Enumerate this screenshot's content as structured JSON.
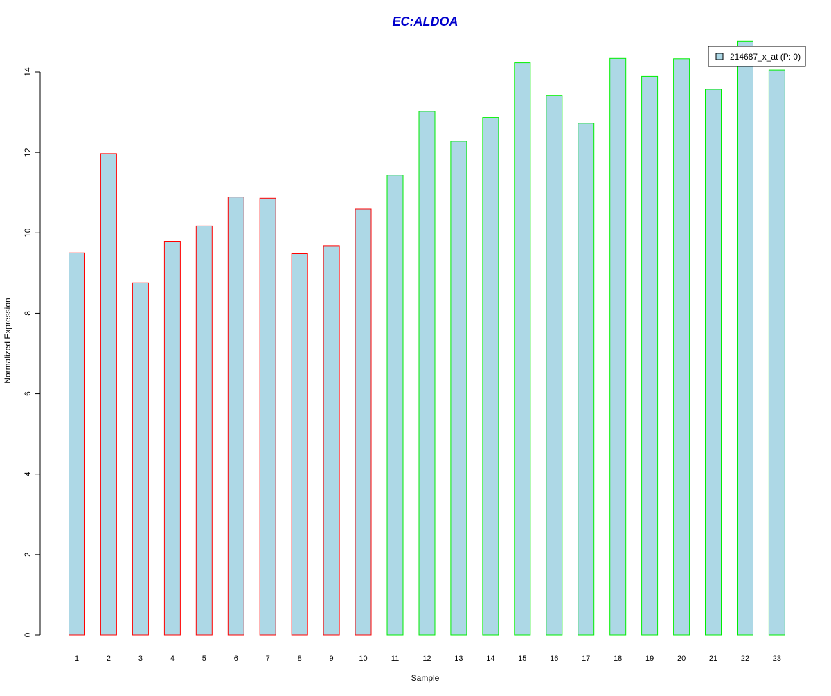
{
  "chart_data": {
    "type": "bar",
    "title": "EC:ALDOA",
    "xlabel": "Sample",
    "ylabel": "Normalized Expression",
    "categories": [
      "1",
      "2",
      "3",
      "4",
      "5",
      "6",
      "7",
      "8",
      "9",
      "10",
      "11",
      "12",
      "13",
      "14",
      "15",
      "16",
      "17",
      "18",
      "19",
      "20",
      "21",
      "22",
      "23"
    ],
    "series": [
      {
        "name": "214687_x_at (P: 0)",
        "values": [
          9.5,
          11.97,
          8.76,
          9.79,
          10.17,
          10.89,
          10.86,
          9.48,
          9.68,
          10.59,
          11.44,
          13.02,
          12.28,
          12.87,
          14.23,
          13.42,
          12.73,
          14.34,
          13.89,
          14.33,
          13.57,
          14.77,
          14.05
        ]
      }
    ],
    "ylim": [
      0,
      14
    ],
    "yticks": [
      0,
      2,
      4,
      6,
      8,
      10,
      12,
      14
    ],
    "legend_position": "top-right",
    "grid": false,
    "colors": {
      "title": "#0000cc",
      "bar_fill": "#add8e6",
      "group1_border": "#ff0000",
      "group2_border": "#00ee00",
      "axis": "#000000"
    },
    "group_split_after": 10
  }
}
